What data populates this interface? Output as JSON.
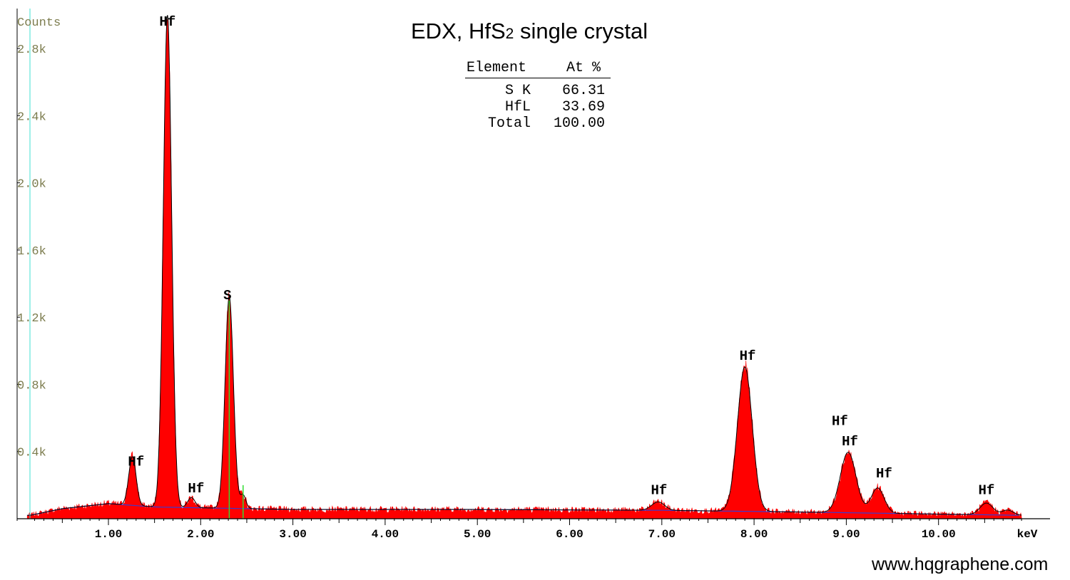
{
  "title_main": "EDX, HfS",
  "title_sub": "2",
  "title_rest": " single crystal",
  "table": {
    "headers": [
      "Element",
      "At %"
    ],
    "rows": [
      {
        "element": "S K",
        "at": "66.31"
      },
      {
        "element": "HfL",
        "at": "33.69"
      },
      {
        "element": "Total",
        "at": "100.00"
      }
    ]
  },
  "watermark": "www.hqgraphene.com",
  "colors": {
    "fill": "#ff0000",
    "outline": "#000000",
    "background_curve": "#3a3ad0",
    "marker": "#33dd33",
    "y_axis": "#40e0d0",
    "tick_label": "#7c7c4e"
  },
  "chart_data": {
    "type": "area",
    "title": "EDX, HfS2 single crystal",
    "ylabel": "Counts",
    "xlabel": "keV",
    "xlim": [
      0,
      10.9
    ],
    "ylim": [
      0,
      3000
    ],
    "x_ticks": [
      "1.00",
      "2.00",
      "3.00",
      "4.00",
      "5.00",
      "6.00",
      "7.00",
      "8.00",
      "9.00",
      "10.00"
    ],
    "y_ticks": [
      "0.4k",
      "0.8k",
      "1.2k",
      "1.6k",
      "2.0k",
      "2.4k",
      "2.8k"
    ],
    "baseline": [
      [
        0.15,
        20
      ],
      [
        0.5,
        60
      ],
      [
        1.0,
        90
      ],
      [
        1.5,
        70
      ],
      [
        3.0,
        55
      ],
      [
        5.0,
        55
      ],
      [
        7.0,
        50
      ],
      [
        8.5,
        40
      ],
      [
        10.9,
        20
      ]
    ],
    "peaks": [
      {
        "label": "Hf",
        "energy": 1.26,
        "height": 290,
        "width": 0.04
      },
      {
        "label": "Hf",
        "energy": 1.64,
        "height": 2930,
        "width": 0.045
      },
      {
        "label": "Hf",
        "energy": 1.9,
        "height": 60,
        "width": 0.04
      },
      {
        "label": "S",
        "energy": 2.31,
        "height": 1260,
        "width": 0.045
      },
      {
        "label": "",
        "energy": 2.46,
        "height": 80,
        "width": 0.03
      },
      {
        "label": "Hf",
        "energy": 6.96,
        "height": 50,
        "width": 0.07
      },
      {
        "label": "Hf",
        "energy": 7.9,
        "height": 860,
        "width": 0.08
      },
      {
        "label": "Hf",
        "energy": 9.02,
        "height": 360,
        "width": 0.085
      },
      {
        "label": "Hf",
        "energy": 9.34,
        "height": 150,
        "width": 0.07
      },
      {
        "label": "Hf",
        "energy": 10.52,
        "height": 70,
        "width": 0.07
      },
      {
        "label": "",
        "energy": 10.75,
        "height": 30,
        "width": 0.06
      }
    ],
    "peak_labels": [
      {
        "text": "Hf",
        "energy": 1.64,
        "counts": 2920
      },
      {
        "text": "Hf",
        "energy": 1.3,
        "counts": 300
      },
      {
        "text": "Hf",
        "energy": 1.95,
        "counts": 140
      },
      {
        "text": "S",
        "energy": 2.29,
        "counts": 1290
      },
      {
        "text": "Hf",
        "energy": 6.97,
        "counts": 130
      },
      {
        "text": "Hf",
        "energy": 7.93,
        "counts": 930
      },
      {
        "text": "Hf",
        "energy": 8.93,
        "counts": 540
      },
      {
        "text": "Hf",
        "energy": 9.04,
        "counts": 420
      },
      {
        "text": "Hf",
        "energy": 9.41,
        "counts": 230
      },
      {
        "text": "Hf",
        "energy": 10.52,
        "counts": 130
      }
    ],
    "marker_lines": [
      {
        "energy": 2.31,
        "counts": 1300
      },
      {
        "energy": 2.46,
        "counts": 200
      }
    ]
  }
}
